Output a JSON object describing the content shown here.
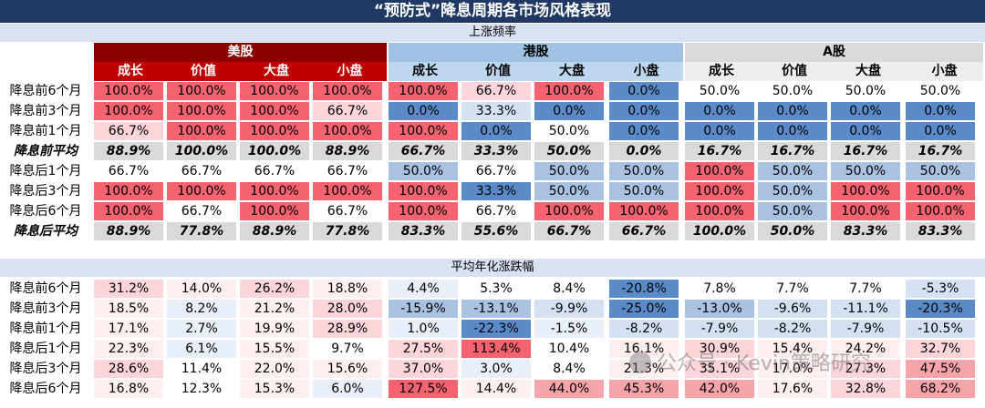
{
  "title": "“预防式”降息周期各市场风格表现",
  "section1_label": "上涨频率",
  "section2_label": "平均年化涨跌幅",
  "markets": [
    {
      "name": "美股",
      "colors": {
        "bg": "#8b0000",
        "fg": "#ffffff"
      }
    },
    {
      "name": "港股",
      "colors": {
        "bg": "#9ec1e4",
        "fg": "#000000"
      }
    },
    {
      "name": "A股",
      "colors": {
        "bg": "#d9d9d9",
        "fg": "#000000"
      }
    }
  ],
  "styles": [
    "成长",
    "价值",
    "大盘",
    "小盘"
  ],
  "subheader_colors": [
    "#c00000",
    "#bdd7ee",
    "#ededed"
  ],
  "colors": {
    "title_bg": "#1f3864",
    "red_strong": "#f4636f",
    "red_light": "#fbd5d9",
    "blue_strong": "#5b8ac8",
    "blue_mid": "#a9c2e2",
    "blue_light": "#d4e1f2",
    "avg_bg": "#d9d9d9",
    "white": "#ffffff"
  },
  "freq_rows": [
    {
      "label": "降息前6个月",
      "avg": false,
      "values": [
        "100.0%",
        "100.0%",
        "100.0%",
        "100.0%",
        "100.0%",
        "66.7%",
        "100.0%",
        "0.0%",
        "50.0%",
        "50.0%",
        "50.0%",
        "50.0%"
      ],
      "shade": [
        "R",
        "R",
        "R",
        "R",
        "R",
        "r",
        "R",
        "B",
        "w",
        "w",
        "w",
        "w"
      ]
    },
    {
      "label": "降息前3个月",
      "avg": false,
      "values": [
        "100.0%",
        "100.0%",
        "100.0%",
        "66.7%",
        "0.0%",
        "33.3%",
        "0.0%",
        "0.0%",
        "0.0%",
        "0.0%",
        "0.0%",
        "0.0%"
      ],
      "shade": [
        "R",
        "R",
        "R",
        "r",
        "B",
        "b",
        "B",
        "B",
        "B",
        "B",
        "B",
        "B"
      ]
    },
    {
      "label": "降息前1个月",
      "avg": false,
      "values": [
        "66.7%",
        "100.0%",
        "100.0%",
        "100.0%",
        "100.0%",
        "0.0%",
        "50.0%",
        "0.0%",
        "0.0%",
        "0.0%",
        "0.0%",
        "0.0%"
      ],
      "shade": [
        "r",
        "R",
        "R",
        "R",
        "R",
        "B",
        "w",
        "B",
        "B",
        "B",
        "B",
        "B"
      ]
    },
    {
      "label": "降息前平均",
      "avg": true,
      "values": [
        "88.9%",
        "100.0%",
        "100.0%",
        "88.9%",
        "66.7%",
        "33.3%",
        "50.0%",
        "0.0%",
        "16.7%",
        "16.7%",
        "16.7%",
        "16.7%"
      ],
      "shade": [
        "g",
        "g",
        "g",
        "g",
        "g",
        "g",
        "g",
        "g",
        "g",
        "g",
        "g",
        "g"
      ]
    },
    {
      "label": "降息后1个月",
      "avg": false,
      "values": [
        "66.7%",
        "66.7%",
        "66.7%",
        "66.7%",
        "50.0%",
        "66.7%",
        "50.0%",
        "50.0%",
        "100.0%",
        "50.0%",
        "50.0%",
        "50.0%"
      ],
      "shade": [
        "w",
        "w",
        "w",
        "w",
        "m",
        "w",
        "m",
        "m",
        "R",
        "m",
        "m",
        "m"
      ]
    },
    {
      "label": "降息后3个月",
      "avg": false,
      "values": [
        "100.0%",
        "100.0%",
        "100.0%",
        "100.0%",
        "100.0%",
        "33.3%",
        "50.0%",
        "50.0%",
        "100.0%",
        "50.0%",
        "100.0%",
        "100.0%"
      ],
      "shade": [
        "R",
        "R",
        "R",
        "R",
        "R",
        "B",
        "m",
        "m",
        "R",
        "m",
        "R",
        "R"
      ]
    },
    {
      "label": "降息后6个月",
      "avg": false,
      "values": [
        "100.0%",
        "66.7%",
        "100.0%",
        "66.7%",
        "100.0%",
        "66.7%",
        "100.0%",
        "100.0%",
        "100.0%",
        "50.0%",
        "100.0%",
        "100.0%"
      ],
      "shade": [
        "R",
        "w",
        "R",
        "w",
        "R",
        "w",
        "R",
        "R",
        "R",
        "m",
        "R",
        "R"
      ]
    },
    {
      "label": "降息后平均",
      "avg": true,
      "values": [
        "88.9%",
        "77.8%",
        "88.9%",
        "77.8%",
        "83.3%",
        "55.6%",
        "66.7%",
        "66.7%",
        "100.0%",
        "50.0%",
        "83.3%",
        "83.3%"
      ],
      "shade": [
        "g",
        "g",
        "g",
        "g",
        "g",
        "g",
        "g",
        "g",
        "g",
        "g",
        "g",
        "g"
      ]
    }
  ],
  "ret_rows": [
    {
      "label": "降息前6个月",
      "values": [
        "31.2%",
        "14.0%",
        "26.2%",
        "18.8%",
        "4.4%",
        "5.3%",
        "8.4%",
        "-20.8%",
        "7.8%",
        "7.7%",
        "7.7%",
        "-5.3%"
      ],
      "shade": [
        "p2",
        "p1",
        "p2",
        "p1",
        "n1",
        "n0",
        "n0",
        "n4",
        "n0",
        "n0",
        "n0",
        "n2"
      ]
    },
    {
      "label": "降息前3个月",
      "values": [
        "18.5%",
        "8.2%",
        "21.2%",
        "28.0%",
        "-15.9%",
        "-13.1%",
        "-9.9%",
        "-25.0%",
        "-13.0%",
        "-9.6%",
        "-11.1%",
        "-20.3%"
      ],
      "shade": [
        "p1",
        "n1",
        "p1",
        "p2",
        "n3",
        "n3",
        "n2",
        "n4",
        "n3",
        "n2",
        "n2",
        "n4"
      ]
    },
    {
      "label": "降息前1个月",
      "values": [
        "17.1%",
        "2.7%",
        "19.9%",
        "28.9%",
        "1.0%",
        "-22.3%",
        "-1.5%",
        "-8.2%",
        "-7.9%",
        "-8.2%",
        "-7.9%",
        "-10.5%"
      ],
      "shade": [
        "p1",
        "n1",
        "p1",
        "p2",
        "n1",
        "n4",
        "n1",
        "n2",
        "n2",
        "n2",
        "n2",
        "n2"
      ]
    },
    {
      "label": "降息后1个月",
      "values": [
        "22.3%",
        "6.1%",
        "15.5%",
        "9.7%",
        "27.5%",
        "113.4%",
        "10.4%",
        "16.1%",
        "30.9%",
        "15.4%",
        "24.2%",
        "32.7%"
      ],
      "shade": [
        "p1",
        "n1",
        "p1",
        "n0",
        "p2",
        "p4",
        "n0",
        "p1",
        "p2",
        "p1",
        "p1",
        "p2"
      ]
    },
    {
      "label": "降息后3个月",
      "values": [
        "28.6%",
        "11.4%",
        "22.0%",
        "15.6%",
        "37.0%",
        "3.0%",
        "8.4%",
        "21.3%",
        "35.1%",
        "17.0%",
        "27.3%",
        "47.5%"
      ],
      "shade": [
        "p2",
        "n0",
        "p1",
        "p1",
        "p2",
        "n1",
        "n0",
        "p1",
        "p2",
        "p1",
        "p2",
        "p3"
      ]
    },
    {
      "label": "降息后6个月",
      "values": [
        "16.8%",
        "12.3%",
        "15.3%",
        "6.0%",
        "127.5%",
        "14.4%",
        "44.0%",
        "45.3%",
        "42.0%",
        "17.6%",
        "32.8%",
        "68.2%"
      ],
      "shade": [
        "p1",
        "n0",
        "p1",
        "n1",
        "p4",
        "p1",
        "p3",
        "p3",
        "p3",
        "p1",
        "p2",
        "p3"
      ]
    }
  ],
  "watermark": "公众号 · Kevin策略研究"
}
